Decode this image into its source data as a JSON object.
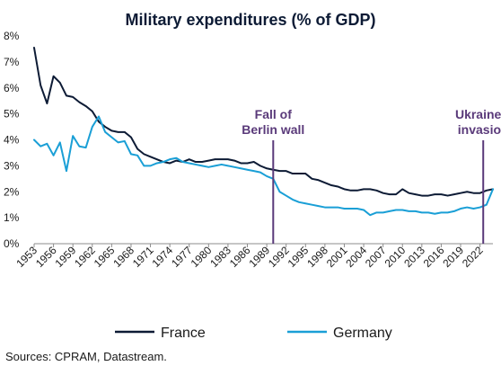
{
  "colors": {
    "france": "#0d1b35",
    "germany": "#1a9fd6",
    "annotation": "#5a3a7a",
    "axis": "#8c8c8c"
  },
  "chart_data": {
    "type": "line",
    "title": "Military expenditures (% of GDP)",
    "xlabel": "",
    "ylabel": "",
    "x_range": [
      1953,
      2024
    ],
    "ylim": [
      0,
      8
    ],
    "y_ticks": [
      "0%",
      "1%",
      "2%",
      "3%",
      "4%",
      "5%",
      "6%",
      "7%",
      "8%"
    ],
    "x_tick_years": [
      1953,
      1956,
      1959,
      1962,
      1965,
      1968,
      1971,
      1974,
      1977,
      1980,
      1983,
      1986,
      1989,
      1992,
      1995,
      1998,
      2001,
      2004,
      2007,
      2010,
      2013,
      2016,
      2019,
      2022
    ],
    "grid": false,
    "legend_position": "bottom",
    "series": [
      {
        "name": "France",
        "color": "#0d1b35",
        "x": [
          1953,
          1954,
          1955,
          1956,
          1957,
          1958,
          1959,
          1960,
          1961,
          1962,
          1963,
          1964,
          1965,
          1966,
          1967,
          1968,
          1969,
          1970,
          1971,
          1972,
          1973,
          1974,
          1975,
          1976,
          1977,
          1978,
          1979,
          1980,
          1981,
          1982,
          1983,
          1984,
          1985,
          1986,
          1987,
          1988,
          1989,
          1990,
          1991,
          1992,
          1993,
          1994,
          1995,
          1996,
          1997,
          1998,
          1999,
          2000,
          2001,
          2002,
          2003,
          2004,
          2005,
          2006,
          2007,
          2008,
          2009,
          2010,
          2011,
          2012,
          2013,
          2014,
          2015,
          2016,
          2017,
          2018,
          2019,
          2020,
          2021,
          2022,
          2023,
          2024
        ],
        "values": [
          7.55,
          6.1,
          5.4,
          6.45,
          6.2,
          5.7,
          5.65,
          5.45,
          5.3,
          5.1,
          4.7,
          4.5,
          4.35,
          4.3,
          4.3,
          4.1,
          3.65,
          3.45,
          3.35,
          3.25,
          3.15,
          3.1,
          3.2,
          3.15,
          3.25,
          3.15,
          3.15,
          3.2,
          3.25,
          3.25,
          3.25,
          3.2,
          3.1,
          3.1,
          3.15,
          3.0,
          2.9,
          2.85,
          2.8,
          2.8,
          2.7,
          2.7,
          2.7,
          2.5,
          2.45,
          2.35,
          2.25,
          2.2,
          2.1,
          2.05,
          2.05,
          2.1,
          2.1,
          2.05,
          1.95,
          1.9,
          1.9,
          2.1,
          1.95,
          1.9,
          1.85,
          1.85,
          1.9,
          1.9,
          1.85,
          1.9,
          1.95,
          2.0,
          1.95,
          1.95,
          2.05,
          2.1
        ]
      },
      {
        "name": "Germany",
        "color": "#1a9fd6",
        "x": [
          1953,
          1954,
          1955,
          1956,
          1957,
          1958,
          1959,
          1960,
          1961,
          1962,
          1963,
          1964,
          1965,
          1966,
          1967,
          1968,
          1969,
          1970,
          1971,
          1972,
          1973,
          1974,
          1975,
          1976,
          1977,
          1978,
          1979,
          1980,
          1981,
          1982,
          1983,
          1984,
          1985,
          1986,
          1987,
          1988,
          1989,
          1990,
          1991,
          1992,
          1993,
          1994,
          1995,
          1996,
          1997,
          1998,
          1999,
          2000,
          2001,
          2002,
          2003,
          2004,
          2005,
          2006,
          2007,
          2008,
          2009,
          2010,
          2011,
          2012,
          2013,
          2014,
          2015,
          2016,
          2017,
          2018,
          2019,
          2020,
          2021,
          2022,
          2023,
          2024
        ],
        "values": [
          4.0,
          3.75,
          3.85,
          3.4,
          3.9,
          2.8,
          4.15,
          3.75,
          3.7,
          4.5,
          4.9,
          4.3,
          4.1,
          3.9,
          3.95,
          3.45,
          3.4,
          3.0,
          3.0,
          3.1,
          3.15,
          3.25,
          3.3,
          3.15,
          3.1,
          3.05,
          3.0,
          2.95,
          3.0,
          3.05,
          3.0,
          2.95,
          2.9,
          2.85,
          2.8,
          2.75,
          2.6,
          2.5,
          2.0,
          1.85,
          1.7,
          1.6,
          1.55,
          1.5,
          1.45,
          1.4,
          1.4,
          1.4,
          1.35,
          1.35,
          1.35,
          1.3,
          1.1,
          1.2,
          1.2,
          1.25,
          1.3,
          1.3,
          1.25,
          1.25,
          1.2,
          1.2,
          1.15,
          1.2,
          1.2,
          1.25,
          1.35,
          1.4,
          1.35,
          1.4,
          1.5,
          2.1
        ]
      }
    ],
    "annotations": [
      {
        "x": 1990,
        "line1": "Fall of",
        "line2": "Berlin wall"
      },
      {
        "x": 2022.5,
        "line1": "Ukraine's",
        "line2": "invasion"
      }
    ]
  },
  "footer": {
    "source": "Sources: CPRAM, Datastream."
  }
}
